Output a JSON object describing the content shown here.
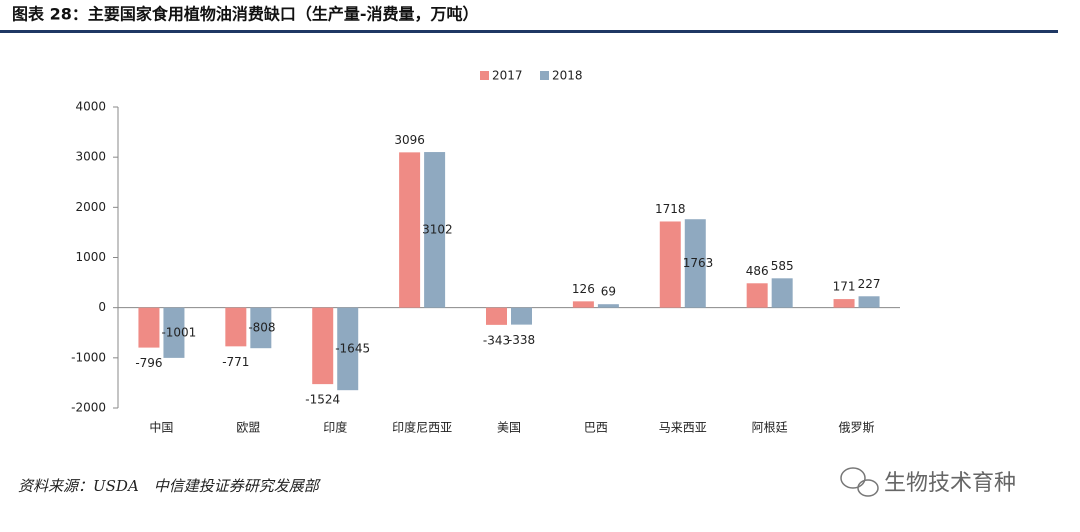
{
  "chart_data": {
    "type": "bar",
    "title": "图表 28：主要国家食用植物油消费缺口（生产量-消费量，万吨）",
    "categories": [
      "中国",
      "欧盟",
      "印度",
      "印度尼西亚",
      "美国",
      "巴西",
      "马来西亚",
      "阿根廷",
      "俄罗斯"
    ],
    "series": [
      {
        "name": "2017",
        "color": "#ef8b85",
        "values": [
          -796,
          -771,
          -1524,
          3096,
          -343,
          126,
          1718,
          486,
          171
        ]
      },
      {
        "name": "2018",
        "color": "#8fa9c0",
        "values": [
          -1001,
          -808,
          -1645,
          3102,
          -338,
          69,
          1763,
          585,
          227
        ]
      }
    ],
    "ylim": [
      -2000,
      4000
    ],
    "yticks": [
      -2000,
      -1000,
      0,
      1000,
      2000,
      3000,
      4000
    ],
    "legend": "top",
    "grid": false,
    "source": "资料来源：USDA　中信建投证券研究发展部"
  },
  "watermark": "生物技术育种"
}
